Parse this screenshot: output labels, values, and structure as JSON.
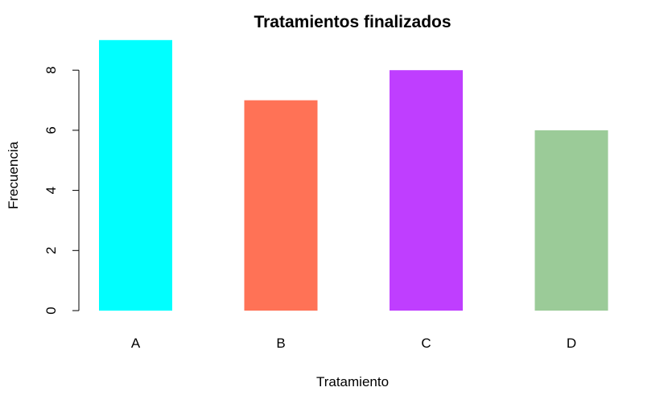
{
  "chart_data": {
    "type": "bar",
    "title": "Tratamientos finalizados",
    "xlabel": "Tratamiento",
    "ylabel": "Frecuencia",
    "categories": [
      "A",
      "B",
      "C",
      "D"
    ],
    "values": [
      9,
      7,
      8,
      6
    ],
    "colors": [
      "#00FFFF",
      "#FF7256",
      "#BF3EFF",
      "#9BCB98"
    ],
    "ylim": [
      0,
      9
    ],
    "yticks": [
      0,
      2,
      4,
      6,
      8
    ],
    "grid": false,
    "legend": "none"
  }
}
